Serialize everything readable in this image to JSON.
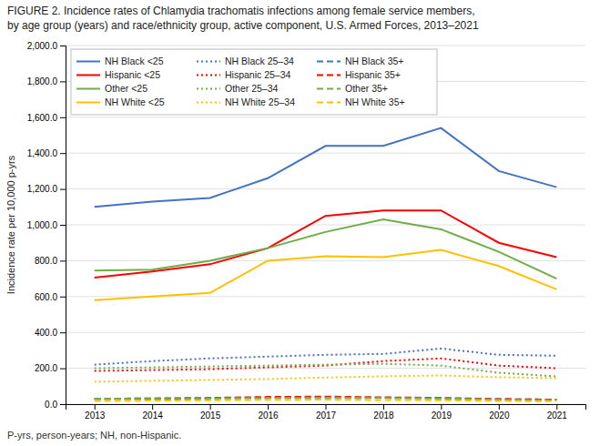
{
  "chart_data": {
    "type": "line",
    "title": "FIGURE 2. Incidence rates of Chlamydia trachomatis infections among female service members,",
    "subtitle": "by age group (years) and race/ethnicity group, active component, U.S. Armed Forces, 2013–2021",
    "annotations": [
      "P-yrs, person-years; NH, non-Hispanic."
    ],
    "y_label": "Incidence rate per 10,000 p-yrs",
    "x": [
      2013,
      2014,
      2015,
      2016,
      2017,
      2018,
      2019,
      2020,
      2021
    ],
    "series": [
      {
        "name": "NH Black <25",
        "color": "#4472C4",
        "line_style": "solid",
        "values": [
          1100,
          1130,
          1150,
          1260,
          1440,
          1440,
          1540,
          1300,
          1210
        ]
      },
      {
        "name": "NH Black 25–34",
        "color": "#4472C4",
        "line_style": "dotted",
        "values": [
          220,
          240,
          255,
          265,
          275,
          280,
          310,
          275,
          270
        ]
      },
      {
        "name": "NH Black 35+",
        "color": "#4472C4",
        "line_style": "dashed",
        "values": [
          28,
          30,
          32,
          35,
          38,
          35,
          32,
          28,
          25
        ]
      },
      {
        "name": "Hispanic <25",
        "color": "#FF0000",
        "line_style": "solid",
        "values": [
          705,
          740,
          780,
          870,
          1050,
          1080,
          1080,
          900,
          820
        ]
      },
      {
        "name": "Hispanic 25–34",
        "color": "#FF0000",
        "line_style": "dotted",
        "values": [
          185,
          190,
          195,
          205,
          215,
          240,
          255,
          215,
          200
        ]
      },
      {
        "name": "Hispanic 35+",
        "color": "#FF0000",
        "line_style": "dashed",
        "values": [
          30,
          32,
          35,
          40,
          42,
          38,
          35,
          28,
          25
        ]
      },
      {
        "name": "Other <25",
        "color": "#70AD47",
        "line_style": "solid",
        "values": [
          745,
          750,
          800,
          870,
          960,
          1030,
          975,
          850,
          700
        ]
      },
      {
        "name": "Other 25–34",
        "color": "#70AD47",
        "line_style": "dotted",
        "values": [
          200,
          205,
          210,
          215,
          220,
          225,
          215,
          175,
          155
        ]
      },
      {
        "name": "Other 35+",
        "color": "#70AD47",
        "line_style": "dashed",
        "values": [
          30,
          32,
          33,
          35,
          37,
          35,
          33,
          25,
          22
        ]
      },
      {
        "name": "NH White <25",
        "color": "#FFC000",
        "line_style": "solid",
        "values": [
          580,
          600,
          620,
          800,
          825,
          820,
          860,
          770,
          640
        ]
      },
      {
        "name": "NH White 25–34",
        "color": "#FFC000",
        "line_style": "dotted",
        "values": [
          125,
          130,
          135,
          140,
          148,
          155,
          160,
          150,
          145
        ]
      },
      {
        "name": "NH White 35+",
        "color": "#FFC000",
        "line_style": "dashed",
        "values": [
          18,
          20,
          22,
          24,
          25,
          23,
          22,
          18,
          16
        ]
      }
    ],
    "xlim": [
      2012.5,
      2021.5
    ],
    "xticks": [
      2013,
      2014,
      2015,
      2016,
      2017,
      2018,
      2019,
      2020,
      2021
    ],
    "ylim": [
      0,
      2000
    ],
    "yticks": [
      {
        "value": 0,
        "label": "0.0"
      },
      {
        "value": 200,
        "label": "200.0"
      },
      {
        "value": 400,
        "label": "400.0"
      },
      {
        "value": 600,
        "label": "600.0"
      },
      {
        "value": 800,
        "label": "800.0"
      },
      {
        "value": 1000,
        "label": "1,000.0"
      },
      {
        "value": 1200,
        "label": "1,200.0"
      },
      {
        "value": 1400,
        "label": "1,400.0"
      },
      {
        "value": 1600,
        "label": "1,600.0"
      },
      {
        "value": 1800,
        "label": "1,800.0"
      },
      {
        "value": 2000,
        "label": "2,000.0"
      }
    ],
    "grid": true,
    "legend": "upper left"
  }
}
